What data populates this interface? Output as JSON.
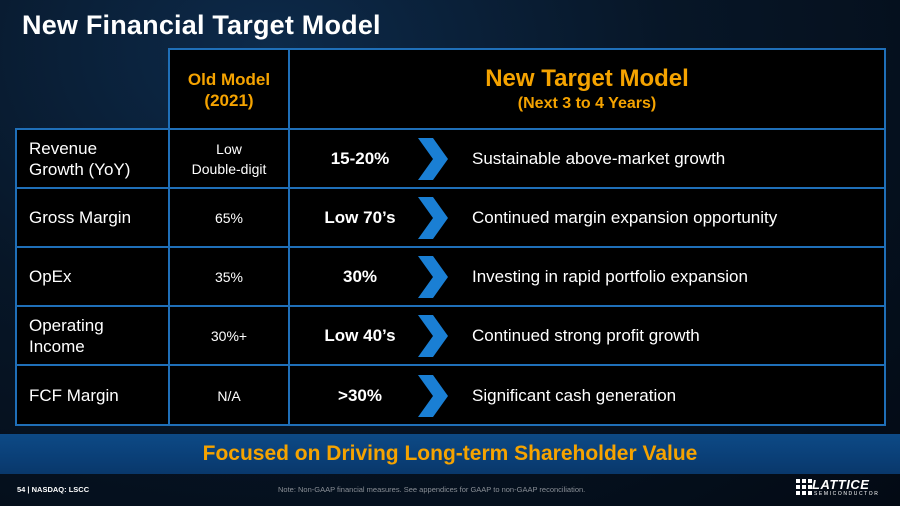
{
  "title": "New Financial Target Model",
  "header": {
    "old_model_line1": "Old Model",
    "old_model_line2": "(2021)",
    "new_model_line1": "New Target Model",
    "new_model_line2": "(Next 3 to 4 Years)"
  },
  "rows": [
    {
      "metric_line1": "Revenue",
      "metric_line2": "Growth (YoY)",
      "old_line1": "Low",
      "old_line2": "Double-digit",
      "target": "15-20%",
      "description": "Sustainable above-market growth"
    },
    {
      "metric_line1": "Gross Margin",
      "metric_line2": "",
      "old_line1": "65%",
      "old_line2": "",
      "target": "Low 70’s",
      "description": "Continued margin expansion opportunity"
    },
    {
      "metric_line1": "OpEx",
      "metric_line2": "",
      "old_line1": "35%",
      "old_line2": "",
      "target": "30%",
      "description": "Investing in rapid portfolio expansion"
    },
    {
      "metric_line1": "Operating",
      "metric_line2": "Income",
      "old_line1": "30%+",
      "old_line2": "",
      "target": "Low 40’s",
      "description": "Continued strong profit growth"
    },
    {
      "metric_line1": "FCF Margin",
      "metric_line2": "",
      "old_line1": "N/A",
      "old_line2": "",
      "target": ">30%",
      "description": "Significant cash generation"
    }
  ],
  "banner": "Focused on Driving Long-term Shareholder Value",
  "footer": {
    "page_ticker": "54  |  NASDAQ: LSCC",
    "note": "Note: Non-GAAP financial measures. See appendices for GAAP to non-GAAP reconciliation."
  },
  "logo": {
    "word": "LATTICE",
    "sub": "SEMICONDUCTOR"
  },
  "colors": {
    "accent": "#f5a300",
    "border": "#1f6fb8",
    "arrow": "#1a7fd4",
    "banner": "#0b4580"
  }
}
